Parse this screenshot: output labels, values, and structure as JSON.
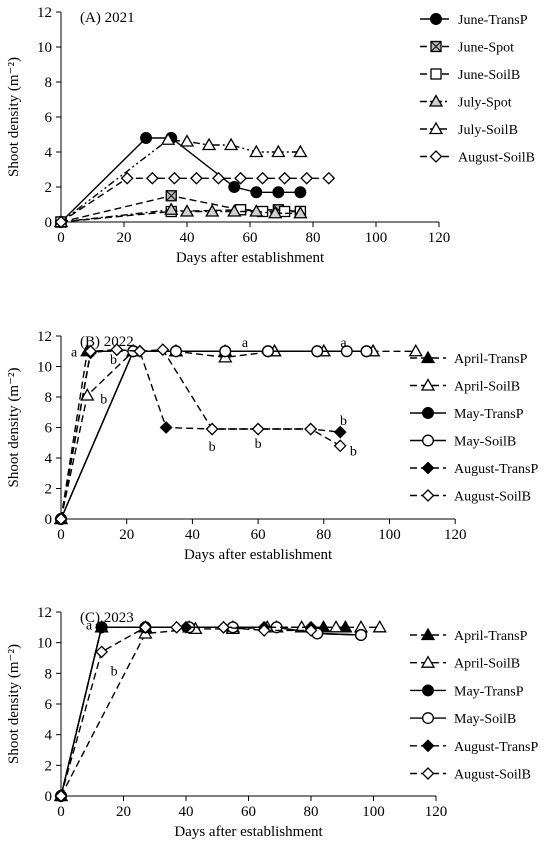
{
  "chart_data": [
    {
      "type": "line",
      "title": "(A) 2021",
      "xlabel": "Days after establishment",
      "ylabel": "Shoot density (m⁻²)",
      "xlim": [
        0,
        120
      ],
      "ylim": [
        0,
        12
      ],
      "xticks": [
        0,
        20,
        40,
        60,
        80,
        100,
        120
      ],
      "yticks": [
        0,
        2,
        4,
        6,
        8,
        10,
        12
      ],
      "grid": false,
      "legend_position": "right",
      "series": [
        {
          "name": "June-TransP",
          "marker": "filled-circle",
          "dash": "solid",
          "points": [
            [
              0,
              0
            ],
            [
              27,
              4.8
            ],
            [
              35,
              4.8
            ],
            [
              55,
              2.0
            ],
            [
              62,
              1.7
            ],
            [
              69,
              1.7
            ],
            [
              76,
              1.7
            ]
          ]
        },
        {
          "name": "June-Spot",
          "marker": "hatched-square",
          "dash": "dashed",
          "points": [
            [
              0,
              0
            ],
            [
              35,
              1.5
            ],
            [
              57,
              0.7
            ],
            [
              69,
              0.7
            ],
            [
              76,
              0.6
            ]
          ]
        },
        {
          "name": "June-SoilB",
          "marker": "open-square",
          "dash": "dashed",
          "points": [
            [
              0,
              0
            ],
            [
              35,
              0.6
            ],
            [
              57,
              0.7
            ],
            [
              64,
              0.6
            ],
            [
              71,
              0.6
            ],
            [
              76,
              0.6
            ]
          ]
        },
        {
          "name": "July-Spot",
          "marker": "dotted-triangle",
          "dash": "dash-dot",
          "points": [
            [
              0,
              0
            ],
            [
              35,
              0.7
            ],
            [
              40,
              0.6
            ],
            [
              48,
              0.6
            ],
            [
              55,
              0.6
            ],
            [
              62,
              0.6
            ],
            [
              68,
              0.5
            ],
            [
              76,
              0.5
            ]
          ]
        },
        {
          "name": "July-SoilB",
          "marker": "open-triangle",
          "dash": "dash-dot-dot",
          "points": [
            [
              0,
              0
            ],
            [
              34,
              4.7
            ],
            [
              40,
              4.6
            ],
            [
              47,
              4.4
            ],
            [
              54,
              4.4
            ],
            [
              62,
              4.0
            ],
            [
              69,
              4.0
            ],
            [
              76,
              4.0
            ]
          ]
        },
        {
          "name": "August-SoilB",
          "marker": "open-diamond",
          "dash": "dashed",
          "points": [
            [
              0,
              0
            ],
            [
              21,
              2.5
            ],
            [
              29,
              2.5
            ],
            [
              36,
              2.5
            ],
            [
              43,
              2.5
            ],
            [
              50,
              2.5
            ],
            [
              57,
              2.5
            ],
            [
              64,
              2.5
            ],
            [
              71,
              2.5
            ],
            [
              78,
              2.5
            ],
            [
              85,
              2.5
            ]
          ]
        }
      ],
      "annotations": []
    },
    {
      "type": "line",
      "title": "(B) 2022",
      "xlabel": "Days after establishment",
      "ylabel": "Shoot density (m⁻²)",
      "xlim": [
        0,
        120
      ],
      "ylim": [
        0,
        12
      ],
      "xticks": [
        0,
        20,
        40,
        60,
        80,
        100,
        120
      ],
      "yticks": [
        0,
        2,
        4,
        6,
        8,
        10,
        12
      ],
      "grid": false,
      "legend_position": "right",
      "series": [
        {
          "name": "April-TransP",
          "marker": "filled-triangle",
          "dash": "dashed",
          "points": [
            [
              0,
              0
            ],
            [
              8,
              11.0
            ],
            [
              22,
              11.0
            ],
            [
              35,
              11.0
            ],
            [
              50,
              11.0
            ],
            [
              65,
              11.0
            ],
            [
              80,
              11.0
            ],
            [
              95,
              11.0
            ]
          ]
        },
        {
          "name": "April-SoilB",
          "marker": "open-triangle",
          "dash": "dashed",
          "points": [
            [
              0,
              0
            ],
            [
              8,
              8.1
            ],
            [
              22,
              11.0
            ],
            [
              35,
              11.0
            ],
            [
              50,
              10.6
            ],
            [
              65,
              11.0
            ],
            [
              80,
              11.0
            ],
            [
              95,
              11.0
            ],
            [
              108,
              11.0
            ]
          ]
        },
        {
          "name": "May-TransP",
          "marker": "filled-circle",
          "dash": "solid",
          "points": [
            [
              0,
              0
            ],
            [
              22,
              11.0
            ],
            [
              35,
              11.0
            ],
            [
              50,
              11.0
            ],
            [
              63,
              11.0
            ],
            [
              78,
              11.0
            ],
            [
              93,
              11.0
            ]
          ]
        },
        {
          "name": "May-SoilB",
          "marker": "open-circle",
          "dash": "solid",
          "points": [
            [
              0,
              0
            ],
            [
              22,
              11.0
            ],
            [
              35,
              11.0
            ],
            [
              50,
              11.0
            ],
            [
              63,
              11.0
            ],
            [
              78,
              11.0
            ],
            [
              87,
              11.0
            ],
            [
              93,
              11.0
            ]
          ]
        },
        {
          "name": "August-TransP",
          "marker": "filled-diamond",
          "dash": "dashed",
          "points": [
            [
              0,
              0
            ],
            [
              9,
              10.9
            ],
            [
              17,
              11.1
            ],
            [
              24,
              11.0
            ],
            [
              32,
              6.0
            ],
            [
              46,
              5.9
            ],
            [
              60,
              5.9
            ],
            [
              76,
              5.9
            ],
            [
              85,
              5.7
            ]
          ]
        },
        {
          "name": "August-SoilB",
          "marker": "open-diamond",
          "dash": "dashed",
          "points": [
            [
              0,
              0
            ],
            [
              9,
              11.0
            ],
            [
              17,
              11.1
            ],
            [
              24,
              11.0
            ],
            [
              31,
              11.1
            ],
            [
              46,
              5.9
            ],
            [
              60,
              5.9
            ],
            [
              76,
              5.9
            ],
            [
              85,
              4.8
            ]
          ]
        }
      ],
      "annotations": [
        {
          "text": "a",
          "x": 4,
          "y": 11.0
        },
        {
          "text": "b",
          "x": 13,
          "y": 7.9
        },
        {
          "text": "a",
          "x": 56,
          "y": 11.6
        },
        {
          "text": "a",
          "x": 86,
          "y": 11.6
        },
        {
          "text": "b",
          "x": 16,
          "y": 10.5
        },
        {
          "text": "b",
          "x": 46,
          "y": 4.8
        },
        {
          "text": "b",
          "x": 60,
          "y": 5.0
        },
        {
          "text": "b",
          "x": 86,
          "y": 6.5
        },
        {
          "text": "b",
          "x": 89,
          "y": 4.5
        }
      ]
    },
    {
      "type": "line",
      "title": "(C) 2023",
      "xlabel": "Days after establishment",
      "ylabel": "Shoot density (m⁻²)",
      "xlim": [
        0,
        120
      ],
      "ylim": [
        0,
        12
      ],
      "xticks": [
        0,
        20,
        40,
        60,
        80,
        100,
        120
      ],
      "yticks": [
        0,
        2,
        4,
        6,
        8,
        10,
        12
      ],
      "grid": false,
      "legend_position": "right",
      "series": [
        {
          "name": "April-TransP",
          "marker": "filled-triangle",
          "dash": "dashed",
          "points": [
            [
              0,
              0
            ],
            [
              13,
              11.0
            ],
            [
              27,
              11.0
            ],
            [
              41,
              11.0
            ],
            [
              55,
              11.0
            ],
            [
              69,
              11.0
            ],
            [
              84,
              11.0
            ],
            [
              91,
              11.0
            ]
          ]
        },
        {
          "name": "April-SoilB",
          "marker": "open-triangle",
          "dash": "dashed",
          "points": [
            [
              0,
              0
            ],
            [
              27,
              10.6
            ],
            [
              43,
              10.9
            ],
            [
              55,
              10.9
            ],
            [
              66,
              11.0
            ],
            [
              77,
              11.0
            ],
            [
              88,
              11.0
            ],
            [
              96,
              11.0
            ],
            [
              102,
              11.0
            ]
          ]
        },
        {
          "name": "May-TransP",
          "marker": "filled-circle",
          "dash": "solid",
          "points": [
            [
              0,
              0
            ],
            [
              13,
              11.0
            ],
            [
              27,
              11.0
            ],
            [
              41,
              11.0
            ],
            [
              55,
              11.0
            ],
            [
              69,
              11.0
            ],
            [
              82,
              10.6
            ],
            [
              96,
              10.5
            ]
          ]
        },
        {
          "name": "May-SoilB",
          "marker": "open-circle",
          "dash": "solid",
          "points": [
            [
              0,
              0
            ],
            [
              13,
              11.0
            ],
            [
              27,
              11.0
            ],
            [
              41,
              11.0
            ],
            [
              55,
              11.0
            ],
            [
              69,
              11.0
            ],
            [
              82,
              10.6
            ],
            [
              96,
              10.5
            ]
          ]
        },
        {
          "name": "August-TransP",
          "marker": "filled-diamond",
          "dash": "dashed",
          "points": [
            [
              0,
              0
            ],
            [
              13,
              11.0
            ],
            [
              27,
              11.0
            ],
            [
              40,
              11.0
            ],
            [
              52,
              11.0
            ],
            [
              65,
              11.0
            ],
            [
              80,
              11.0
            ]
          ]
        },
        {
          "name": "August-SoilB",
          "marker": "open-diamond",
          "dash": "dashed",
          "points": [
            [
              0,
              0
            ],
            [
              13,
              9.4
            ],
            [
              27,
              11.0
            ],
            [
              37,
              11.0
            ],
            [
              52,
              11.0
            ],
            [
              65,
              10.8
            ],
            [
              80,
              10.8
            ]
          ]
        }
      ],
      "annotations": [
        {
          "text": "a",
          "x": 9,
          "y": 11.2
        },
        {
          "text": "b",
          "x": 17,
          "y": 8.2
        }
      ]
    }
  ]
}
